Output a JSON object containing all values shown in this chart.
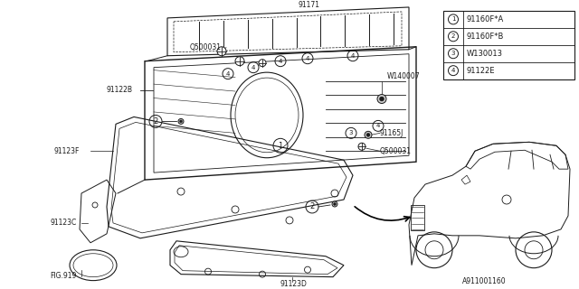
{
  "bg_color": "#ffffff",
  "line_color": "#1a1a1a",
  "legend_items": [
    {
      "num": "1",
      "label": "91160F*A"
    },
    {
      "num": "2",
      "label": "91160F*B"
    },
    {
      "num": "3",
      "label": "W130013"
    },
    {
      "num": "4",
      "label": "91122E"
    }
  ],
  "footer_text": "A911001160",
  "lfs": 5.5
}
